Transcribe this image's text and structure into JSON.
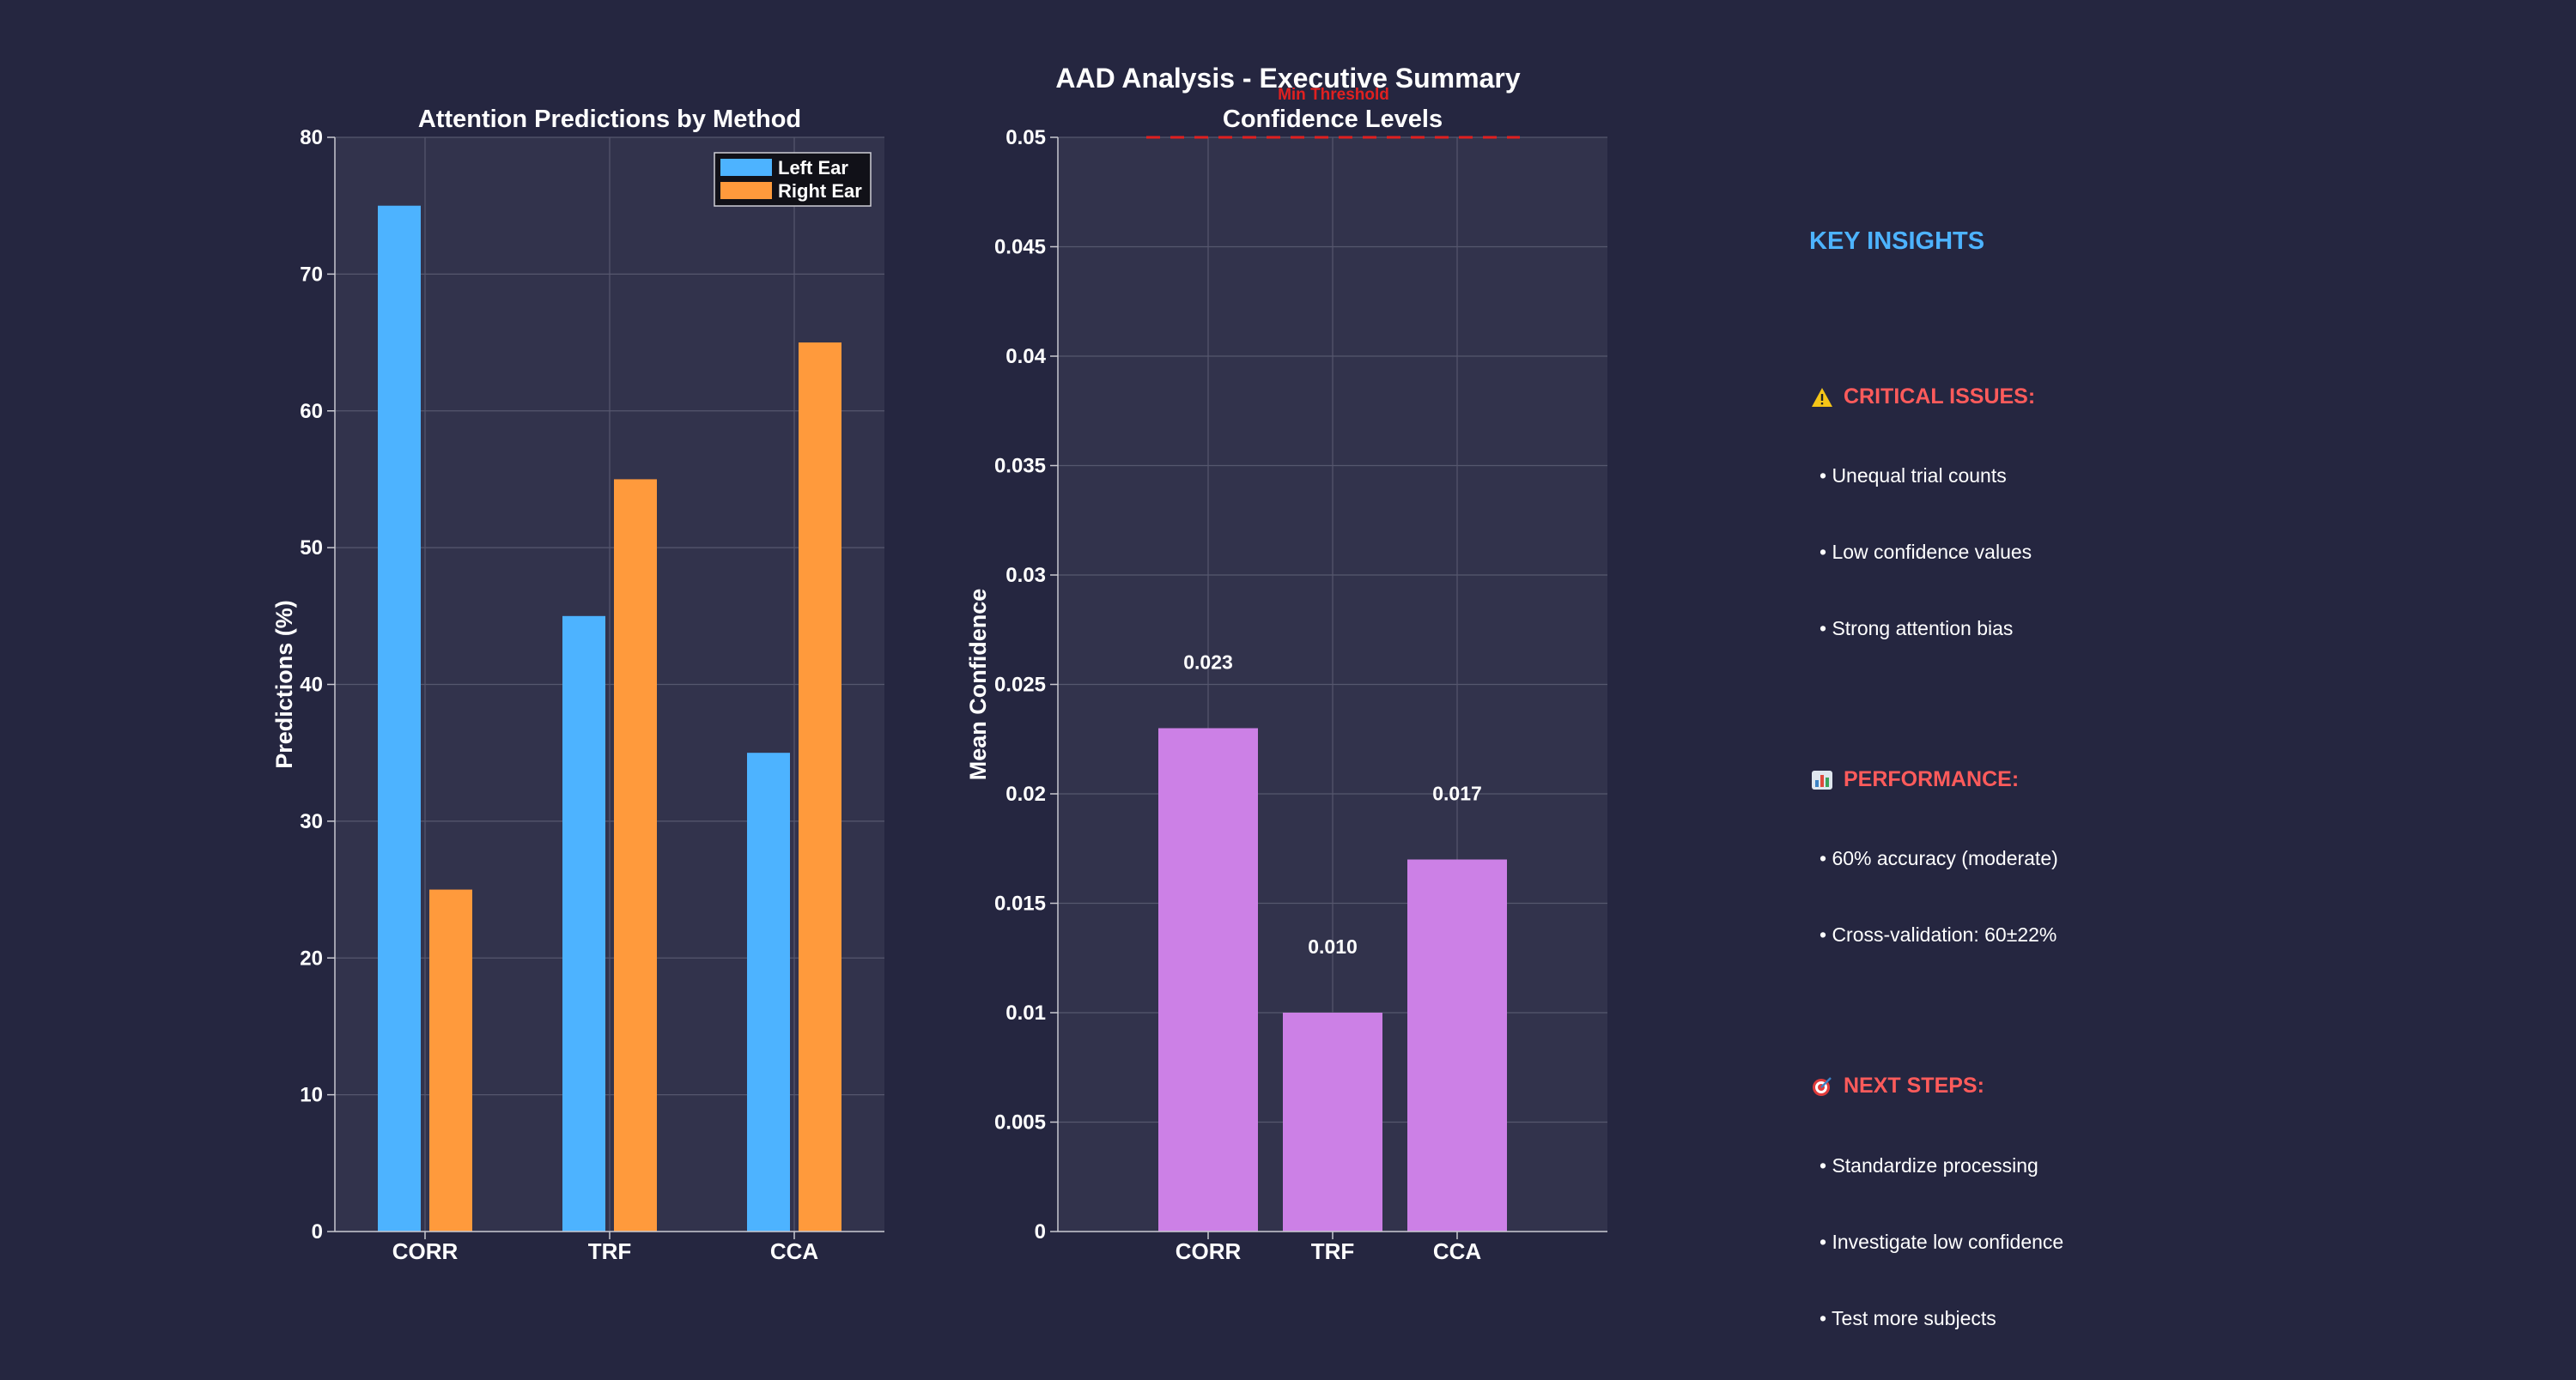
{
  "figure": {
    "title": "AAD Analysis - Executive Summary"
  },
  "chart_data": [
    {
      "type": "bar",
      "title": "Attention Predictions by Method",
      "xlabel": "",
      "ylabel": "Predictions (%)",
      "categories": [
        "CORR",
        "TRF",
        "CCA"
      ],
      "series": [
        {
          "name": "Left Ear",
          "values": [
            75,
            45,
            35
          ],
          "color": "#4db3ff"
        },
        {
          "name": "Right Ear",
          "values": [
            25,
            55,
            65
          ],
          "color": "#ff9a3c"
        }
      ],
      "ylim": [
        0,
        80
      ],
      "yticks": [
        "0",
        "10",
        "20",
        "30",
        "40",
        "50",
        "60",
        "70",
        "80"
      ],
      "grid": true,
      "legend": "top-right"
    },
    {
      "type": "bar",
      "title": "Confidence Levels",
      "xlabel": "",
      "ylabel": "Mean Confidence",
      "categories": [
        "CORR",
        "TRF",
        "CCA"
      ],
      "values": [
        0.023,
        0.01,
        0.017
      ],
      "data_labels": [
        "0.023",
        "0.010",
        "0.017"
      ],
      "color": "#cc80e6",
      "ylim": [
        0,
        0.05
      ],
      "yticks": [
        "0",
        "0.005",
        "0.01",
        "0.015",
        "0.02",
        "0.025",
        "0.03",
        "0.035",
        "0.04",
        "0.045",
        "0.05"
      ],
      "grid": true,
      "threshold": {
        "value": 0.05,
        "label": "Min Threshold",
        "color": "#e02020"
      }
    }
  ],
  "insights": {
    "heading": "KEY INSIGHTS",
    "sections": [
      {
        "title": "CRITICAL ISSUES:",
        "icon": "warning-icon",
        "items": [
          "• Unequal trial counts",
          "• Low confidence values",
          "• Strong attention bias"
        ]
      },
      {
        "title": "PERFORMANCE:",
        "icon": "bar-chart-icon",
        "items": [
          "• 60% accuracy (moderate)",
          "• Cross-validation: 60±22%"
        ]
      },
      {
        "title": "NEXT STEPS:",
        "icon": "target-icon",
        "items": [
          "• Standardize processing",
          "• Investigate low confidence",
          "• Test more subjects"
        ]
      }
    ]
  },
  "colors": {
    "background": "#252640",
    "axes_background": "#32334c",
    "grid": "#56576e",
    "accent_heading": "#4db3ff",
    "section_heading": "#ff5b5b"
  }
}
